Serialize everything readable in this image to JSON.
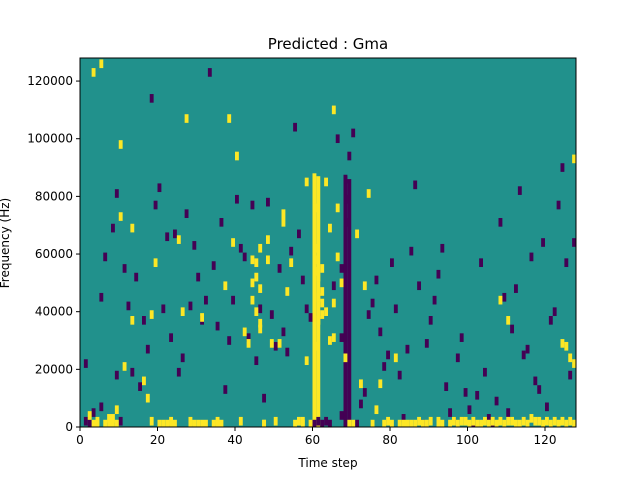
{
  "chart_data": {
    "type": "heatmap",
    "title": "Predicted : Gma",
    "xlabel": "Time step",
    "ylabel": "Frequency (Hz)",
    "xlim": [
      0,
      128
    ],
    "ylim": [
      0,
      128000
    ],
    "x_ticks": [
      0,
      20,
      40,
      60,
      80,
      100,
      120
    ],
    "y_ticks": [
      0,
      20000,
      40000,
      60000,
      80000,
      100000,
      120000
    ],
    "grid": false,
    "legend": "none",
    "colors": {
      "background": "#21918c",
      "high": "#fde725",
      "low": "#440154"
    },
    "cell_size": {
      "time_steps": 1,
      "frequency_hz": 1000
    },
    "yellow_cells": [
      [
        2,
        4000
      ],
      [
        3,
        1000
      ],
      [
        3,
        123000
      ],
      [
        4,
        2000
      ],
      [
        4,
        1000
      ],
      [
        5,
        126000
      ],
      [
        6,
        1000
      ],
      [
        7,
        3000
      ],
      [
        7,
        1000
      ],
      [
        8,
        1000
      ],
      [
        8,
        3000
      ],
      [
        9,
        1000
      ],
      [
        9,
        6000
      ],
      [
        10,
        73000
      ],
      [
        10,
        98000
      ],
      [
        11,
        21000
      ],
      [
        13,
        37000
      ],
      [
        13,
        69000
      ],
      [
        16,
        16000
      ],
      [
        17,
        10000
      ],
      [
        18,
        2000
      ],
      [
        18,
        39000
      ],
      [
        19,
        57000
      ],
      [
        20,
        1000
      ],
      [
        21,
        1000
      ],
      [
        22,
        1000
      ],
      [
        23,
        2000
      ],
      [
        23,
        1000
      ],
      [
        24,
        1000
      ],
      [
        25,
        65000
      ],
      [
        26,
        40000
      ],
      [
        27,
        107000
      ],
      [
        28,
        1000
      ],
      [
        28,
        2000
      ],
      [
        29,
        1000
      ],
      [
        30,
        1000
      ],
      [
        31,
        1000
      ],
      [
        31,
        38000
      ],
      [
        32,
        1000
      ],
      [
        34,
        1000
      ],
      [
        35,
        2000
      ],
      [
        35,
        1000
      ],
      [
        36,
        1000
      ],
      [
        37,
        49000
      ],
      [
        38,
        107000
      ],
      [
        39,
        64000
      ],
      [
        40,
        94000
      ],
      [
        41,
        2000
      ],
      [
        42,
        33000
      ],
      [
        43,
        29000
      ],
      [
        44,
        44000
      ],
      [
        44,
        50000
      ],
      [
        44,
        58000
      ],
      [
        45,
        40000
      ],
      [
        45,
        57000
      ],
      [
        45,
        52000
      ],
      [
        46,
        34000
      ],
      [
        46,
        62000
      ],
      [
        46,
        48000
      ],
      [
        46,
        36000
      ],
      [
        47,
        1000
      ],
      [
        47,
        1000
      ],
      [
        48,
        65000
      ],
      [
        48,
        58000
      ],
      [
        49,
        29000
      ],
      [
        50,
        2000
      ],
      [
        51,
        29000
      ],
      [
        52,
        71000
      ],
      [
        52,
        74000
      ],
      [
        53,
        47000
      ],
      [
        54,
        57000
      ],
      [
        55,
        1000
      ],
      [
        56,
        2000
      ],
      [
        57,
        2000
      ],
      [
        57,
        1000
      ],
      [
        58,
        85000
      ],
      [
        58,
        23000
      ],
      [
        59,
        1000
      ],
      [
        60,
        62000
      ],
      [
        60,
        58000
      ],
      [
        60,
        54000
      ],
      [
        60,
        28000
      ],
      [
        60,
        76000
      ],
      [
        61,
        37000
      ],
      [
        61,
        45000
      ],
      [
        61,
        52000
      ],
      [
        62,
        39000
      ],
      [
        62,
        43000
      ],
      [
        62,
        47000
      ],
      [
        62,
        55000
      ],
      [
        63,
        85000
      ],
      [
        63,
        40000
      ],
      [
        64,
        30000
      ],
      [
        64,
        69000
      ],
      [
        65,
        110000
      ],
      [
        65,
        43000
      ],
      [
        65,
        31000
      ],
      [
        66,
        76000
      ],
      [
        66,
        59000
      ],
      [
        67,
        50000
      ],
      [
        68,
        24000
      ],
      [
        69,
        1000
      ],
      [
        70,
        1000
      ],
      [
        71,
        67000
      ],
      [
        72,
        15000
      ],
      [
        73,
        49000
      ],
      [
        74,
        81000
      ],
      [
        75,
        1000
      ],
      [
        76,
        6000
      ],
      [
        77,
        15000
      ],
      [
        78,
        1000
      ],
      [
        79,
        2000
      ],
      [
        80,
        1000
      ],
      [
        81,
        24000
      ],
      [
        82,
        1000
      ],
      [
        83,
        1000
      ],
      [
        84,
        1000
      ],
      [
        85,
        1000
      ],
      [
        86,
        1000
      ],
      [
        87,
        2000
      ],
      [
        88,
        1000
      ],
      [
        89,
        1000
      ],
      [
        90,
        2000
      ],
      [
        92,
        1000
      ],
      [
        92,
        2000
      ],
      [
        93,
        1000
      ],
      [
        95,
        1000
      ],
      [
        96,
        2000
      ],
      [
        97,
        1000
      ],
      [
        98,
        2000
      ],
      [
        99,
        2000
      ],
      [
        100,
        1000
      ],
      [
        101,
        2000
      ],
      [
        102,
        1000
      ],
      [
        103,
        1000
      ],
      [
        104,
        2000
      ],
      [
        105,
        1000
      ],
      [
        106,
        2000
      ],
      [
        107,
        1000
      ],
      [
        108,
        2000
      ],
      [
        108,
        44000
      ],
      [
        109,
        1000
      ],
      [
        110,
        2000
      ],
      [
        110,
        37000
      ],
      [
        111,
        2000
      ],
      [
        112,
        1000
      ],
      [
        113,
        1000
      ],
      [
        114,
        2000
      ],
      [
        115,
        1000
      ],
      [
        116,
        3000
      ],
      [
        117,
        2000
      ],
      [
        118,
        2000
      ],
      [
        119,
        1000
      ],
      [
        120,
        2000
      ],
      [
        121,
        1000
      ],
      [
        122,
        2000
      ],
      [
        123,
        1000
      ],
      [
        124,
        2000
      ],
      [
        125,
        1000
      ],
      [
        126,
        2000
      ],
      [
        127,
        1000
      ],
      [
        124,
        29000
      ],
      [
        125,
        28000
      ],
      [
        126,
        24000
      ],
      [
        127,
        22000
      ],
      [
        127,
        93000
      ]
    ],
    "purple_cells": [
      [
        1,
        2000
      ],
      [
        1,
        22000
      ],
      [
        2,
        1000
      ],
      [
        3,
        5000
      ],
      [
        5,
        7000
      ],
      [
        5,
        45000
      ],
      [
        6,
        59000
      ],
      [
        8,
        69000
      ],
      [
        9,
        18000
      ],
      [
        9,
        81000
      ],
      [
        10,
        2000
      ],
      [
        11,
        55000
      ],
      [
        12,
        42000
      ],
      [
        13,
        19000
      ],
      [
        14,
        52000
      ],
      [
        15,
        14000
      ],
      [
        16,
        37000
      ],
      [
        17,
        27000
      ],
      [
        18,
        114000
      ],
      [
        19,
        77000
      ],
      [
        20,
        83000
      ],
      [
        21,
        41000
      ],
      [
        22,
        66000
      ],
      [
        23,
        31000
      ],
      [
        24,
        67000
      ],
      [
        25,
        19000
      ],
      [
        26,
        24000
      ],
      [
        27,
        74000
      ],
      [
        28,
        42000
      ],
      [
        29,
        63000
      ],
      [
        30,
        52000
      ],
      [
        31,
        37000
      ],
      [
        32,
        44000
      ],
      [
        33,
        123000
      ],
      [
        34,
        56000
      ],
      [
        35,
        35000
      ],
      [
        36,
        71000
      ],
      [
        37,
        13000
      ],
      [
        38,
        30000
      ],
      [
        39,
        44000
      ],
      [
        40,
        79000
      ],
      [
        41,
        62000
      ],
      [
        42,
        59000
      ],
      [
        43,
        31000
      ],
      [
        44,
        77000
      ],
      [
        45,
        23000
      ],
      [
        46,
        41000
      ],
      [
        47,
        10000
      ],
      [
        48,
        78000
      ],
      [
        49,
        39000
      ],
      [
        50,
        28000
      ],
      [
        51,
        55000
      ],
      [
        52,
        33000
      ],
      [
        53,
        26000
      ],
      [
        54,
        61000
      ],
      [
        55,
        104000
      ],
      [
        56,
        67000
      ],
      [
        57,
        51000
      ],
      [
        58,
        41000
      ],
      [
        59,
        38000
      ],
      [
        60,
        1000
      ],
      [
        61,
        2000
      ],
      [
        62,
        1000
      ],
      [
        63,
        2000
      ],
      [
        64,
        1000
      ],
      [
        65,
        49000
      ],
      [
        66,
        100000
      ],
      [
        67,
        4000
      ],
      [
        67,
        31000
      ],
      [
        67,
        55000
      ],
      [
        68,
        71000
      ],
      [
        68,
        79000
      ],
      [
        68,
        86000
      ],
      [
        69,
        94000
      ],
      [
        70,
        102000
      ],
      [
        71,
        1000
      ],
      [
        72,
        8000
      ],
      [
        73,
        12000
      ],
      [
        74,
        39000
      ],
      [
        75,
        43000
      ],
      [
        76,
        51000
      ],
      [
        77,
        33000
      ],
      [
        78,
        21000
      ],
      [
        79,
        25000
      ],
      [
        80,
        57000
      ],
      [
        81,
        41000
      ],
      [
        82,
        18000
      ],
      [
        83,
        3000
      ],
      [
        84,
        27000
      ],
      [
        85,
        61000
      ],
      [
        86,
        84000
      ],
      [
        87,
        49000
      ],
      [
        88,
        1000
      ],
      [
        89,
        29000
      ],
      [
        90,
        37000
      ],
      [
        91,
        44000
      ],
      [
        92,
        53000
      ],
      [
        93,
        62000
      ],
      [
        94,
        14000
      ],
      [
        95,
        5000
      ],
      [
        96,
        2000
      ],
      [
        97,
        24000
      ],
      [
        98,
        31000
      ],
      [
        99,
        12000
      ],
      [
        100,
        6000
      ],
      [
        101,
        1000
      ],
      [
        102,
        11000
      ],
      [
        103,
        57000
      ],
      [
        104,
        19000
      ],
      [
        105,
        3000
      ],
      [
        106,
        1000
      ],
      [
        107,
        9000
      ],
      [
        108,
        71000
      ],
      [
        109,
        45000
      ],
      [
        110,
        5000
      ],
      [
        111,
        34000
      ],
      [
        112,
        48000
      ],
      [
        113,
        82000
      ],
      [
        114,
        25000
      ],
      [
        115,
        27000
      ],
      [
        116,
        59000
      ],
      [
        117,
        16000
      ],
      [
        118,
        13000
      ],
      [
        119,
        64000
      ],
      [
        120,
        7000
      ],
      [
        121,
        37000
      ],
      [
        122,
        40000
      ],
      [
        123,
        77000
      ],
      [
        124,
        90000
      ],
      [
        125,
        57000
      ],
      [
        126,
        18000
      ],
      [
        127,
        64000
      ]
    ],
    "yellow_columns": [
      {
        "time_step": 60,
        "frequency_range": [
          1000,
          88000
        ]
      },
      {
        "time_step": 61,
        "frequency_range": [
          1000,
          87000
        ]
      }
    ],
    "purple_columns": [
      {
        "time_step": 68,
        "frequency_range": [
          1000,
          87000
        ]
      },
      {
        "time_step": 69,
        "frequency_range": [
          1000,
          86000
        ]
      }
    ]
  }
}
